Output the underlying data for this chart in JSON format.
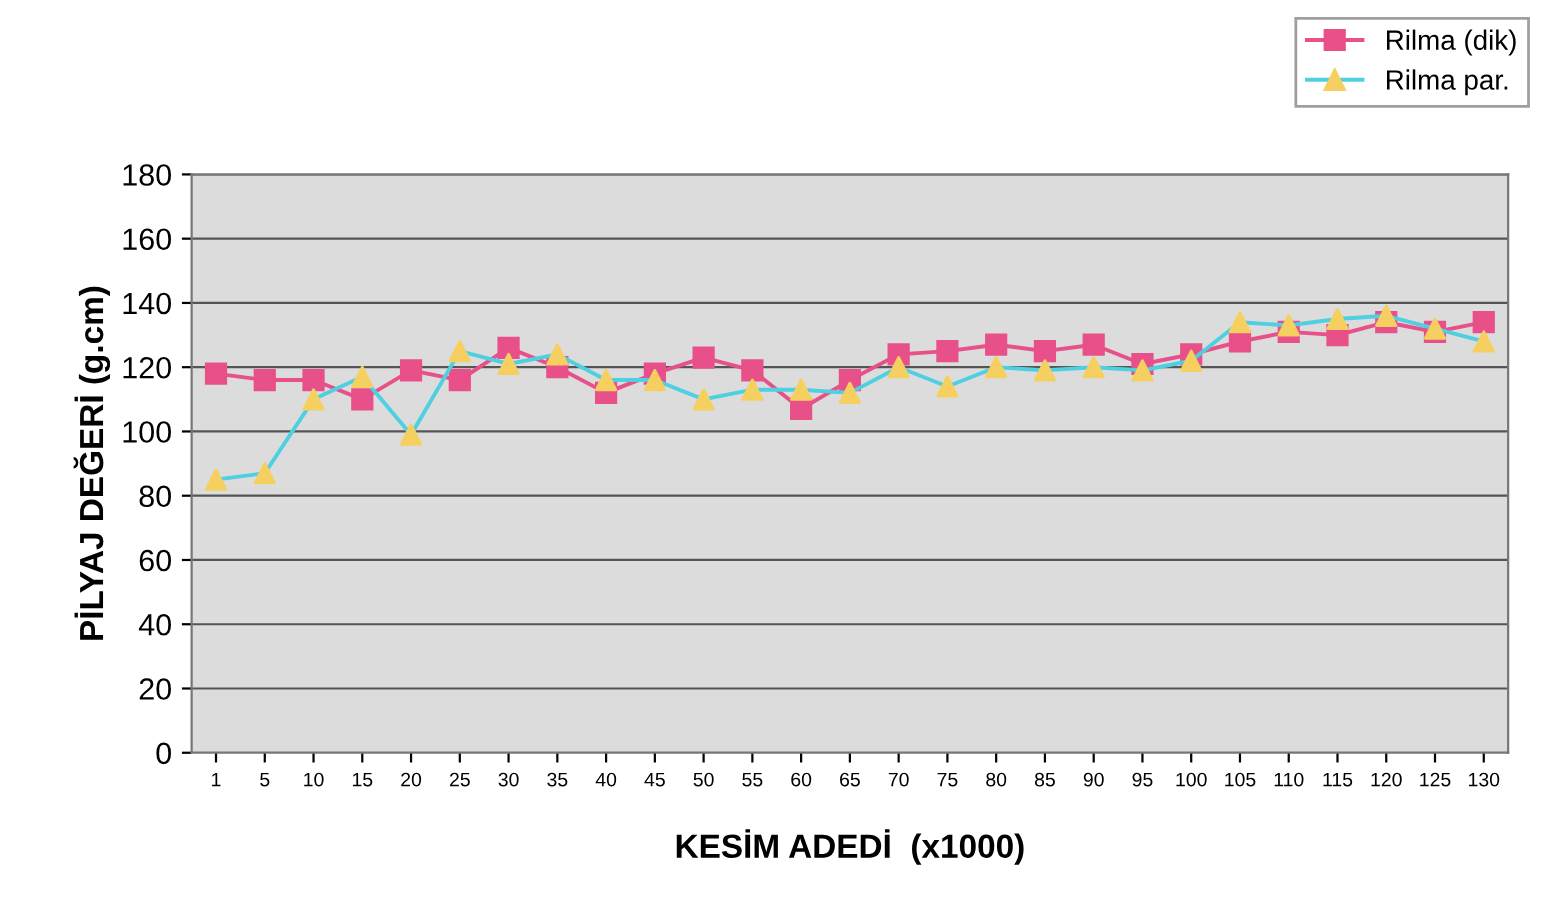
{
  "chart_data": {
    "type": "line",
    "xlabel": "KESİM ADEDİ  (x1000)",
    "ylabel": "PİLYAJ DEĞERİ (g.cm)",
    "categories": [
      "1",
      "5",
      "10",
      "15",
      "20",
      "25",
      "30",
      "35",
      "40",
      "45",
      "50",
      "55",
      "60",
      "65",
      "70",
      "75",
      "80",
      "85",
      "90",
      "95",
      "100",
      "105",
      "110",
      "115",
      "120",
      "125",
      "130"
    ],
    "series": [
      {
        "name": "Rilma (dik)",
        "color": "#e8508a",
        "marker": "square",
        "values": [
          118,
          116,
          116,
          110,
          119,
          116,
          126,
          120,
          112,
          118,
          123,
          119,
          107,
          116,
          124,
          125,
          127,
          125,
          127,
          121,
          124,
          128,
          131,
          130,
          134,
          131,
          134
        ]
      },
      {
        "name": "Rilma par.",
        "color": "#4fd0e0",
        "marker": "triangle",
        "colors": [
          "#f5d060",
          "#f5d060",
          "#f5d060",
          "#f5d060",
          "#f5d060",
          "#f5d060",
          "#f5d060",
          "#f5d060",
          "#f5d060",
          "#f5d060",
          "#f5d060",
          "#f5d060",
          "#f5d060",
          "#f5d060",
          "#f5d060",
          "#f5d060",
          "#f5d060",
          "#f5d060",
          "#f5d060",
          "#f5d060",
          "#f5d060",
          "#f5d060",
          "#f5d060",
          "#f5d060",
          "#f5d060",
          "#f5d060",
          "#f5d060"
        ],
        "values": [
          85,
          87,
          110,
          117,
          99,
          125,
          121,
          124,
          116,
          116,
          110,
          113,
          113,
          112,
          120,
          114,
          120,
          119,
          120,
          119,
          122,
          134,
          133,
          135,
          136,
          132,
          128
        ]
      }
    ],
    "ylim": [
      0,
      180
    ],
    "yticks": [
      0,
      20,
      40,
      60,
      80,
      100,
      120,
      140,
      160,
      180
    ],
    "grid": "y",
    "legend": "top right"
  }
}
